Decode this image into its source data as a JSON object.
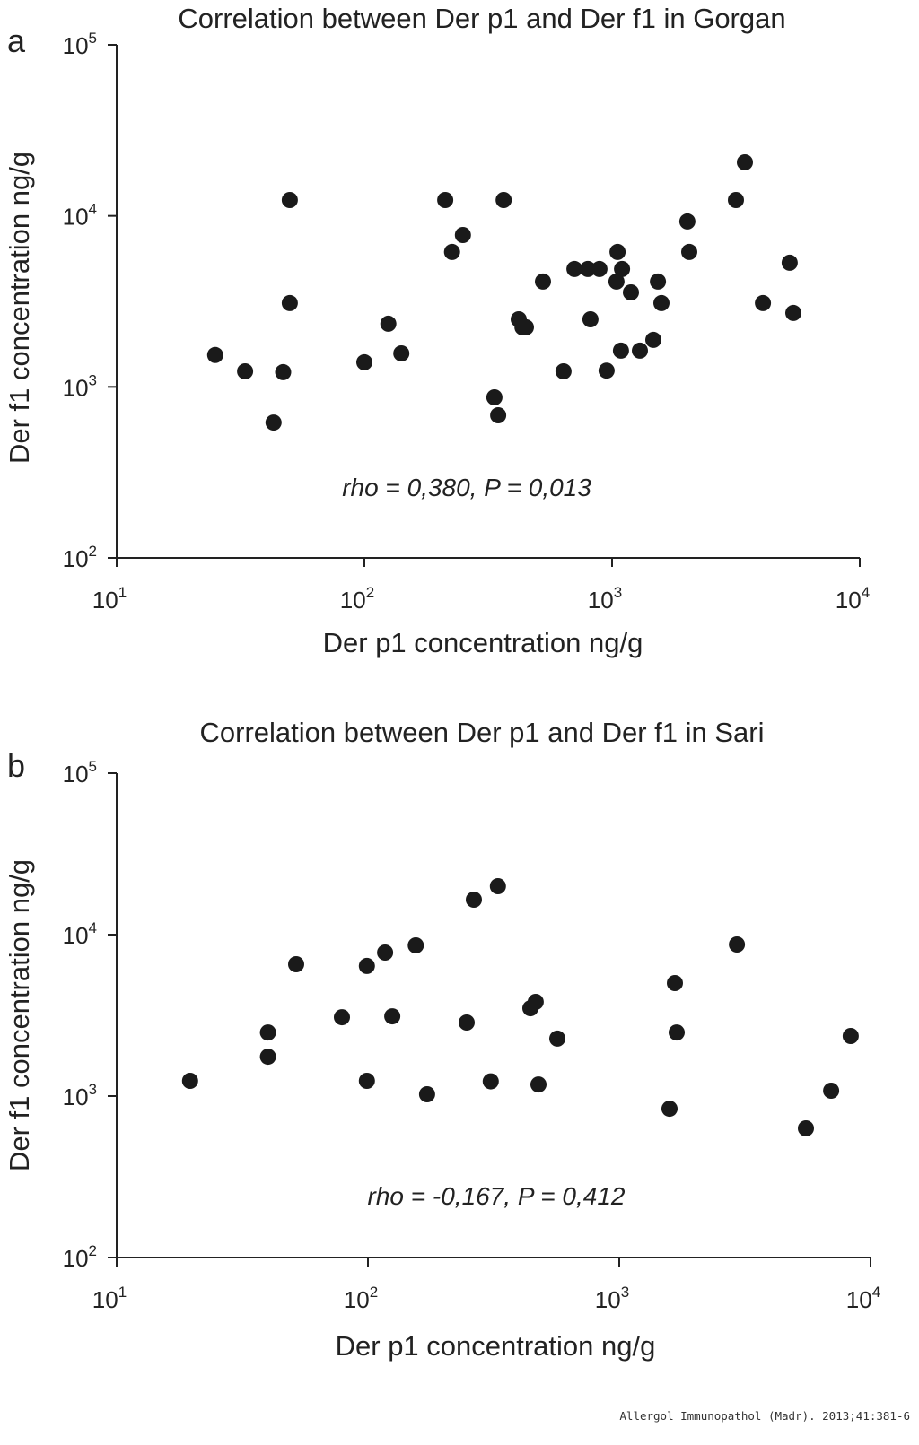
{
  "chart_data": [
    {
      "panel_label": "a",
      "type": "scatter",
      "title": "Correlation  between Der p1 and Der f1 in Gorgan",
      "xlabel": "Der p1 concentration ng/g",
      "ylabel": "Der f1 concentration ng/g",
      "xscale": "log",
      "yscale": "log",
      "xlim": [
        10,
        10000
      ],
      "ylim": [
        100,
        100000
      ],
      "x_ticks": [
        {
          "base": "10",
          "exp": "1"
        },
        {
          "base": "10",
          "exp": "2"
        },
        {
          "base": "10",
          "exp": "3"
        },
        {
          "base": "10",
          "exp": "4"
        }
      ],
      "y_ticks": [
        {
          "base": "10",
          "exp": "2"
        },
        {
          "base": "10",
          "exp": "3"
        },
        {
          "base": "10",
          "exp": "4"
        },
        {
          "base": "10",
          "exp": "5"
        }
      ],
      "grid": false,
      "annotation": "rho = 0,380, P = 0,013",
      "marker_color": "#1a1a1a",
      "points": [
        [
          25,
          1535
        ],
        [
          33,
          1233
        ],
        [
          47,
          1219
        ],
        [
          43,
          619
        ],
        [
          50,
          12380
        ],
        [
          50,
          3090
        ],
        [
          100,
          1393
        ],
        [
          125,
          2340
        ],
        [
          141,
          1570
        ],
        [
          212,
          12380
        ],
        [
          226,
          6150
        ],
        [
          250,
          7730
        ],
        [
          335,
          869
        ],
        [
          347,
          682
        ],
        [
          365,
          12380
        ],
        [
          420,
          2485
        ],
        [
          435,
          2230
        ],
        [
          449,
          2230
        ],
        [
          526,
          4130
        ],
        [
          637,
          1233
        ],
        [
          705,
          4890
        ],
        [
          798,
          4890
        ],
        [
          889,
          4890
        ],
        [
          818,
          2485
        ],
        [
          950,
          1245
        ],
        [
          1052,
          6150
        ],
        [
          1097,
          4890
        ],
        [
          1042,
          4130
        ],
        [
          1086,
          1630
        ],
        [
          1191,
          3570
        ],
        [
          1295,
          1630
        ],
        [
          1468,
          1883
        ],
        [
          1531,
          4130
        ],
        [
          1582,
          3090
        ],
        [
          2013,
          9270
        ],
        [
          2049,
          6150
        ],
        [
          3162,
          12380
        ],
        [
          3436,
          20560
        ],
        [
          4064,
          3090
        ],
        [
          5214,
          5320
        ],
        [
          5395,
          2705
        ]
      ]
    },
    {
      "panel_label": "b",
      "type": "scatter",
      "title": "Correlation  between Der p1 and Der f1 in Sari",
      "xlabel": "Der p1 concentration ng/g",
      "ylabel": "Der f1 concentration ng/g",
      "xscale": "log",
      "yscale": "log",
      "xlim": [
        10,
        10000
      ],
      "ylim": [
        100,
        100000
      ],
      "x_ticks": [
        {
          "base": "10",
          "exp": "1"
        },
        {
          "base": "10",
          "exp": "2"
        },
        {
          "base": "10",
          "exp": "3"
        },
        {
          "base": "10",
          "exp": "4"
        }
      ],
      "y_ticks": [
        {
          "base": "10",
          "exp": "2"
        },
        {
          "base": "10",
          "exp": "3"
        },
        {
          "base": "10",
          "exp": "4"
        },
        {
          "base": "10",
          "exp": "5"
        }
      ],
      "grid": false,
      "annotation": "rho = -0,167, P = 0,412",
      "marker_color": "#1a1a1a",
      "points": [
        [
          19.6,
          1243
        ],
        [
          40,
          2478
        ],
        [
          40,
          1754
        ],
        [
          51.8,
          6555
        ],
        [
          78.8,
          3080
        ],
        [
          99,
          6395
        ],
        [
          99,
          1243
        ],
        [
          117,
          7740
        ],
        [
          125,
          3120
        ],
        [
          172,
          1026
        ],
        [
          155,
          8580
        ],
        [
          247,
          2855
        ],
        [
          264,
          16470
        ],
        [
          308,
          1233
        ],
        [
          329,
          19950
        ],
        [
          443,
          3500
        ],
        [
          465,
          3830
        ],
        [
          477,
          1180
        ],
        [
          567,
          2270
        ],
        [
          1585,
          835
        ],
        [
          1665,
          5010
        ],
        [
          1693,
          2478
        ],
        [
          2938,
          8690
        ],
        [
          5530,
          631
        ],
        [
          6970,
          1080
        ],
        [
          8340,
          2355
        ]
      ]
    }
  ],
  "footer": "Allergol Immunopathol (Madr). 2013;41:381-6"
}
